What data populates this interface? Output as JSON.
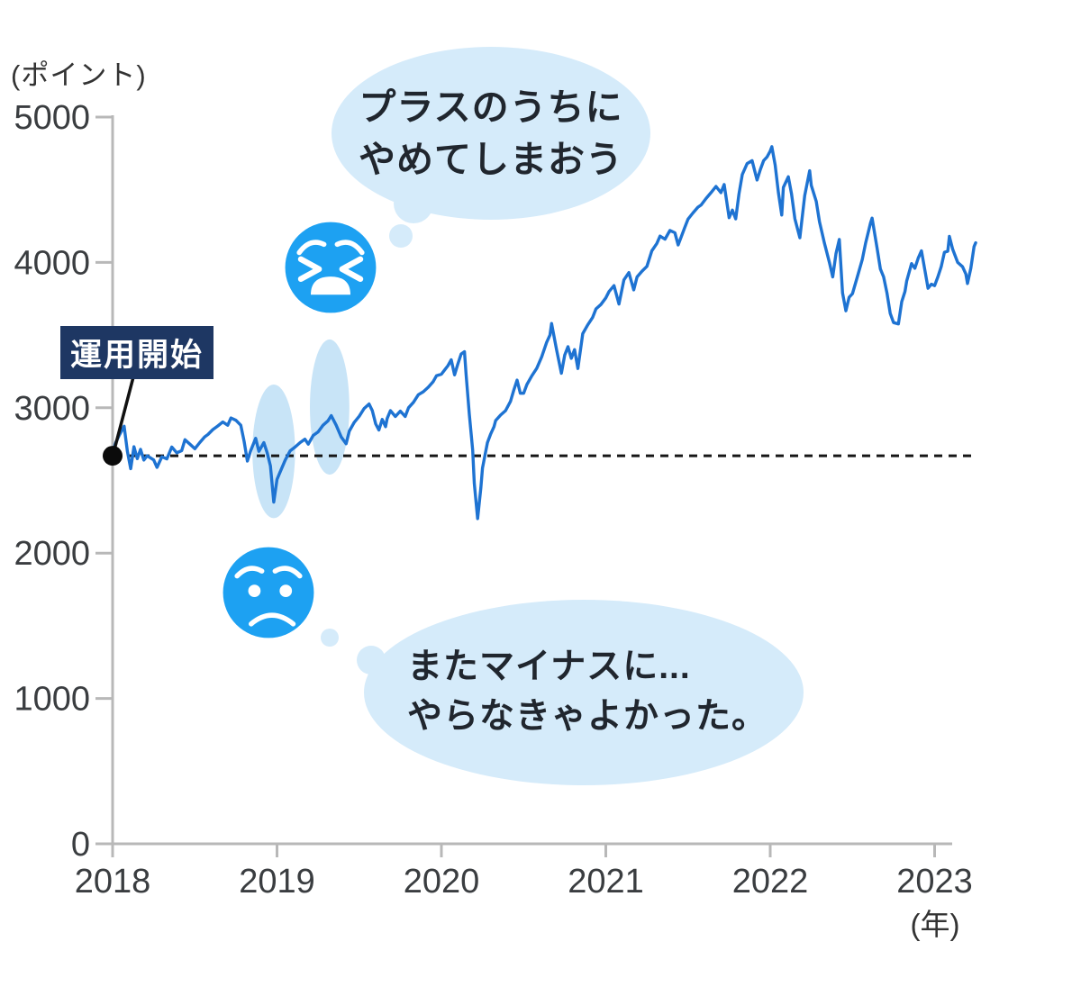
{
  "colors": {
    "line": "#1e73d2",
    "emoji": "#1da1f2",
    "bubble": "#d5ebfa",
    "highlight": "#c8e4f7",
    "navy_label_bg": "#1e3763",
    "axis": "#b8b8b8",
    "tick_text": "#3a3d40",
    "dashed": "#161616",
    "bubble_text": "#20262e"
  },
  "annotations": {
    "start_label": "運用開始",
    "thought_bubble_top": {
      "line1": "プラスのうちに",
      "line2": "やめてしまおう"
    },
    "thought_bubble_bottom": {
      "line1": "またマイナスに...",
      "line2": "やらなきゃよかった。"
    },
    "emoji_top": "tired-face",
    "emoji_bottom": "worried-face"
  },
  "chart_data": {
    "type": "line",
    "y_axis": {
      "unit_label": "(ポイント)",
      "ticks": [
        0,
        1000,
        2000,
        3000,
        4000,
        5000
      ],
      "range": [
        0,
        5000
      ]
    },
    "x_axis": {
      "unit_label": "(年)",
      "ticks": [
        2018,
        2019,
        2020,
        2021,
        2022,
        2023
      ],
      "range": [
        2018,
        2023.3
      ]
    },
    "baseline": {
      "value": 2670,
      "style": "dashed",
      "start_year": 2018.0,
      "end_year": 2023.23
    },
    "start_point": {
      "year": 2018.0,
      "value": 2670
    },
    "highlight_ellipses": [
      {
        "year": 2018.98,
        "value": 2700,
        "rx_years": 0.13,
        "ry_points": 460
      },
      {
        "year": 2019.32,
        "value": 3005,
        "rx_years": 0.12,
        "ry_points": 465
      }
    ],
    "series": [
      {
        "points": [
          [
            2018.0,
            2696
          ],
          [
            2018.02,
            2762
          ],
          [
            2018.04,
            2810
          ],
          [
            2018.07,
            2873
          ],
          [
            2018.09,
            2700
          ],
          [
            2018.11,
            2581
          ],
          [
            2018.13,
            2732
          ],
          [
            2018.15,
            2650
          ],
          [
            2018.17,
            2714
          ],
          [
            2018.19,
            2640
          ],
          [
            2018.21,
            2670
          ],
          [
            2018.25,
            2641
          ],
          [
            2018.27,
            2590
          ],
          [
            2018.3,
            2663
          ],
          [
            2018.33,
            2648
          ],
          [
            2018.36,
            2730
          ],
          [
            2018.39,
            2690
          ],
          [
            2018.42,
            2705
          ],
          [
            2018.44,
            2780
          ],
          [
            2018.47,
            2750
          ],
          [
            2018.5,
            2718
          ],
          [
            2018.53,
            2760
          ],
          [
            2018.56,
            2800
          ],
          [
            2018.58,
            2816
          ],
          [
            2018.61,
            2850
          ],
          [
            2018.64,
            2875
          ],
          [
            2018.67,
            2902
          ],
          [
            2018.7,
            2880
          ],
          [
            2018.72,
            2930
          ],
          [
            2018.75,
            2914
          ],
          [
            2018.78,
            2880
          ],
          [
            2018.8,
            2768
          ],
          [
            2018.82,
            2633
          ],
          [
            2018.84,
            2705
          ],
          [
            2018.87,
            2790
          ],
          [
            2018.89,
            2700
          ],
          [
            2018.92,
            2760
          ],
          [
            2018.94,
            2690
          ],
          [
            2018.96,
            2600
          ],
          [
            2018.98,
            2351
          ],
          [
            2019.0,
            2507
          ],
          [
            2019.02,
            2560
          ],
          [
            2019.05,
            2640
          ],
          [
            2019.08,
            2704
          ],
          [
            2019.11,
            2730
          ],
          [
            2019.14,
            2760
          ],
          [
            2019.17,
            2784
          ],
          [
            2019.19,
            2750
          ],
          [
            2019.22,
            2810
          ],
          [
            2019.25,
            2834
          ],
          [
            2019.28,
            2880
          ],
          [
            2019.31,
            2910
          ],
          [
            2019.33,
            2946
          ],
          [
            2019.36,
            2880
          ],
          [
            2019.39,
            2800
          ],
          [
            2019.42,
            2752
          ],
          [
            2019.44,
            2840
          ],
          [
            2019.47,
            2900
          ],
          [
            2019.5,
            2942
          ],
          [
            2019.53,
            2995
          ],
          [
            2019.56,
            3026
          ],
          [
            2019.58,
            2980
          ],
          [
            2019.6,
            2890
          ],
          [
            2019.62,
            2847
          ],
          [
            2019.64,
            2920
          ],
          [
            2019.66,
            2870
          ],
          [
            2019.67,
            2926
          ],
          [
            2019.69,
            2980
          ],
          [
            2019.72,
            2940
          ],
          [
            2019.75,
            2977
          ],
          [
            2019.78,
            2940
          ],
          [
            2019.8,
            3000
          ],
          [
            2019.83,
            3038
          ],
          [
            2019.86,
            3090
          ],
          [
            2019.89,
            3110
          ],
          [
            2019.92,
            3141
          ],
          [
            2019.95,
            3180
          ],
          [
            2019.97,
            3220
          ],
          [
            2020.0,
            3231
          ],
          [
            2020.02,
            3260
          ],
          [
            2020.04,
            3290
          ],
          [
            2020.06,
            3330
          ],
          [
            2020.08,
            3226
          ],
          [
            2020.1,
            3300
          ],
          [
            2020.12,
            3370
          ],
          [
            2020.14,
            3386
          ],
          [
            2020.15,
            3230
          ],
          [
            2020.17,
            2954
          ],
          [
            2020.19,
            2710
          ],
          [
            2020.2,
            2480
          ],
          [
            2020.22,
            2237
          ],
          [
            2020.24,
            2450
          ],
          [
            2020.25,
            2585
          ],
          [
            2020.28,
            2760
          ],
          [
            2020.3,
            2820
          ],
          [
            2020.32,
            2870
          ],
          [
            2020.33,
            2912
          ],
          [
            2020.36,
            2950
          ],
          [
            2020.39,
            2980
          ],
          [
            2020.42,
            3044
          ],
          [
            2020.44,
            3120
          ],
          [
            2020.46,
            3190
          ],
          [
            2020.48,
            3100
          ],
          [
            2020.5,
            3100
          ],
          [
            2020.52,
            3160
          ],
          [
            2020.55,
            3220
          ],
          [
            2020.58,
            3271
          ],
          [
            2020.61,
            3350
          ],
          [
            2020.64,
            3450
          ],
          [
            2020.66,
            3500
          ],
          [
            2020.67,
            3580
          ],
          [
            2020.7,
            3400
          ],
          [
            2020.73,
            3237
          ],
          [
            2020.75,
            3363
          ],
          [
            2020.77,
            3420
          ],
          [
            2020.79,
            3340
          ],
          [
            2020.81,
            3400
          ],
          [
            2020.83,
            3270
          ],
          [
            2020.86,
            3510
          ],
          [
            2020.89,
            3570
          ],
          [
            2020.92,
            3622
          ],
          [
            2020.94,
            3680
          ],
          [
            2020.97,
            3710
          ],
          [
            2021.0,
            3756
          ],
          [
            2021.02,
            3800
          ],
          [
            2021.05,
            3840
          ],
          [
            2021.08,
            3714
          ],
          [
            2021.11,
            3880
          ],
          [
            2021.14,
            3930
          ],
          [
            2021.17,
            3811
          ],
          [
            2021.19,
            3900
          ],
          [
            2021.22,
            3940
          ],
          [
            2021.25,
            3973
          ],
          [
            2021.28,
            4080
          ],
          [
            2021.31,
            4130
          ],
          [
            2021.33,
            4181
          ],
          [
            2021.36,
            4160
          ],
          [
            2021.39,
            4220
          ],
          [
            2021.42,
            4204
          ],
          [
            2021.44,
            4120
          ],
          [
            2021.46,
            4180
          ],
          [
            2021.48,
            4240
          ],
          [
            2021.5,
            4298
          ],
          [
            2021.53,
            4340
          ],
          [
            2021.56,
            4380
          ],
          [
            2021.58,
            4395
          ],
          [
            2021.61,
            4440
          ],
          [
            2021.64,
            4480
          ],
          [
            2021.67,
            4523
          ],
          [
            2021.7,
            4480
          ],
          [
            2021.72,
            4536
          ],
          [
            2021.75,
            4308
          ],
          [
            2021.77,
            4360
          ],
          [
            2021.79,
            4300
          ],
          [
            2021.81,
            4470
          ],
          [
            2021.83,
            4605
          ],
          [
            2021.86,
            4680
          ],
          [
            2021.89,
            4700
          ],
          [
            2021.92,
            4567
          ],
          [
            2021.94,
            4640
          ],
          [
            2021.96,
            4700
          ],
          [
            2021.98,
            4725
          ],
          [
            2022.0,
            4766
          ],
          [
            2022.01,
            4796
          ],
          [
            2022.03,
            4670
          ],
          [
            2022.05,
            4480
          ],
          [
            2022.07,
            4326
          ],
          [
            2022.08,
            4516
          ],
          [
            2022.11,
            4589
          ],
          [
            2022.13,
            4470
          ],
          [
            2022.15,
            4300
          ],
          [
            2022.18,
            4170
          ],
          [
            2022.21,
            4460
          ],
          [
            2022.24,
            4631
          ],
          [
            2022.25,
            4530
          ],
          [
            2022.28,
            4420
          ],
          [
            2022.3,
            4280
          ],
          [
            2022.33,
            4132
          ],
          [
            2022.36,
            4000
          ],
          [
            2022.38,
            3900
          ],
          [
            2022.4,
            4060
          ],
          [
            2022.42,
            4158
          ],
          [
            2022.44,
            3790
          ],
          [
            2022.46,
            3667
          ],
          [
            2022.48,
            3760
          ],
          [
            2022.5,
            3785
          ],
          [
            2022.53,
            3900
          ],
          [
            2022.56,
            4020
          ],
          [
            2022.58,
            4130
          ],
          [
            2022.61,
            4270
          ],
          [
            2022.62,
            4305
          ],
          [
            2022.65,
            4100
          ],
          [
            2022.67,
            3955
          ],
          [
            2022.69,
            3900
          ],
          [
            2022.71,
            3790
          ],
          [
            2022.73,
            3650
          ],
          [
            2022.75,
            3586
          ],
          [
            2022.78,
            3577
          ],
          [
            2022.8,
            3730
          ],
          [
            2022.82,
            3800
          ],
          [
            2022.83,
            3872
          ],
          [
            2022.86,
            3992
          ],
          [
            2022.88,
            3960
          ],
          [
            2022.9,
            4030
          ],
          [
            2022.92,
            4080
          ],
          [
            2022.94,
            3950
          ],
          [
            2022.96,
            3822
          ],
          [
            2022.98,
            3850
          ],
          [
            2023.0,
            3840
          ],
          [
            2023.02,
            3900
          ],
          [
            2023.04,
            3970
          ],
          [
            2023.06,
            4070
          ],
          [
            2023.08,
            4077
          ],
          [
            2023.09,
            4179
          ],
          [
            2023.11,
            4090
          ],
          [
            2023.14,
            4000
          ],
          [
            2023.17,
            3970
          ],
          [
            2023.19,
            3920
          ],
          [
            2023.2,
            3855
          ],
          [
            2023.22,
            3960
          ],
          [
            2023.24,
            4109
          ],
          [
            2023.25,
            4135
          ]
        ]
      }
    ]
  }
}
